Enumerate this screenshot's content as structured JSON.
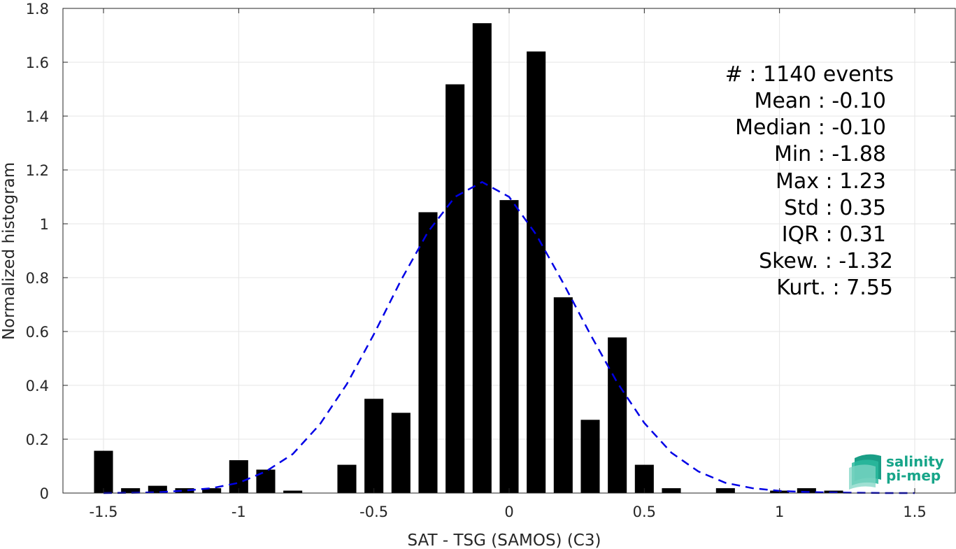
{
  "chart_data": {
    "type": "bar",
    "xlabel": "SAT - TSG (SAMOS) (C3)",
    "ylabel": "Normalized histogram",
    "xlim": [
      -1.65,
      1.65
    ],
    "ylim": [
      0,
      1.8
    ],
    "xticks": [
      -1.5,
      -1,
      -0.5,
      0,
      0.5,
      1,
      1.5
    ],
    "xtick_labels": [
      "-1.5",
      "-1",
      "-0.5",
      "0",
      "0.5",
      "1",
      "1.5"
    ],
    "yticks": [
      0,
      0.2,
      0.4,
      0.6,
      0.8,
      1,
      1.2,
      1.4,
      1.6,
      1.8
    ],
    "ytick_labels": [
      "0",
      "0.2",
      "0.4",
      "0.6",
      "0.8",
      "1",
      "1.2",
      "1.4",
      "1.6",
      "1.8"
    ],
    "grid": true,
    "bar_width": 0.07,
    "bar_color": "#000000",
    "bars": {
      "x": [
        -1.5,
        -1.4,
        -1.3,
        -1.2,
        -1.1,
        -1.0,
        -0.9,
        -0.8,
        -0.6,
        -0.5,
        -0.4,
        -0.3,
        -0.2,
        -0.1,
        0.0,
        0.1,
        0.2,
        0.3,
        0.4,
        0.5,
        0.6,
        0.8,
        1.0,
        1.1,
        1.2
      ],
      "values": [
        0.157,
        0.018,
        0.027,
        0.018,
        0.018,
        0.122,
        0.087,
        0.009,
        0.105,
        0.35,
        0.298,
        1.043,
        1.518,
        1.745,
        1.088,
        1.64,
        0.727,
        0.272,
        0.578,
        0.105,
        0.018,
        0.018,
        0.009,
        0.018,
        0.009
      ]
    },
    "fit": {
      "type": "line",
      "style": "dashed",
      "color": "#0000e6",
      "x": [
        -1.5,
        -1.4,
        -1.3,
        -1.2,
        -1.1,
        -1.0,
        -0.9,
        -0.8,
        -0.7,
        -0.6,
        -0.5,
        -0.4,
        -0.3,
        -0.2,
        -0.1,
        0.0,
        0.1,
        0.2,
        0.3,
        0.4,
        0.5,
        0.6,
        0.7,
        0.8,
        0.9,
        1.0,
        1.1,
        1.2,
        1.3,
        1.4,
        1.5
      ],
      "values": [
        0.0,
        0.001,
        0.003,
        0.009,
        0.018,
        0.038,
        0.08,
        0.145,
        0.255,
        0.405,
        0.59,
        0.79,
        0.97,
        1.1,
        1.155,
        1.1,
        0.96,
        0.78,
        0.59,
        0.41,
        0.26,
        0.15,
        0.08,
        0.038,
        0.018,
        0.008,
        0.004,
        0.002,
        0.001,
        0.0,
        0.0
      ]
    }
  },
  "stats": {
    "events": "#  : 1140 events",
    "mean": "Mean : -0.10",
    "median": "Median : -0.10",
    "min": "Min : -1.88",
    "max": "Max : 1.23",
    "std": "Std : 0.35",
    "iqr": "IQR : 0.31",
    "skew": "Skew. : -1.32",
    "kurt": "Kurt. : 7.55"
  },
  "logo": {
    "line1": "salinity",
    "line2": "pi-mep"
  },
  "colors": {
    "bars": "#000000",
    "fit_line": "#0000e6",
    "grid": "#e6e6e6",
    "axes": "#262626",
    "logo": "#17a589"
  }
}
